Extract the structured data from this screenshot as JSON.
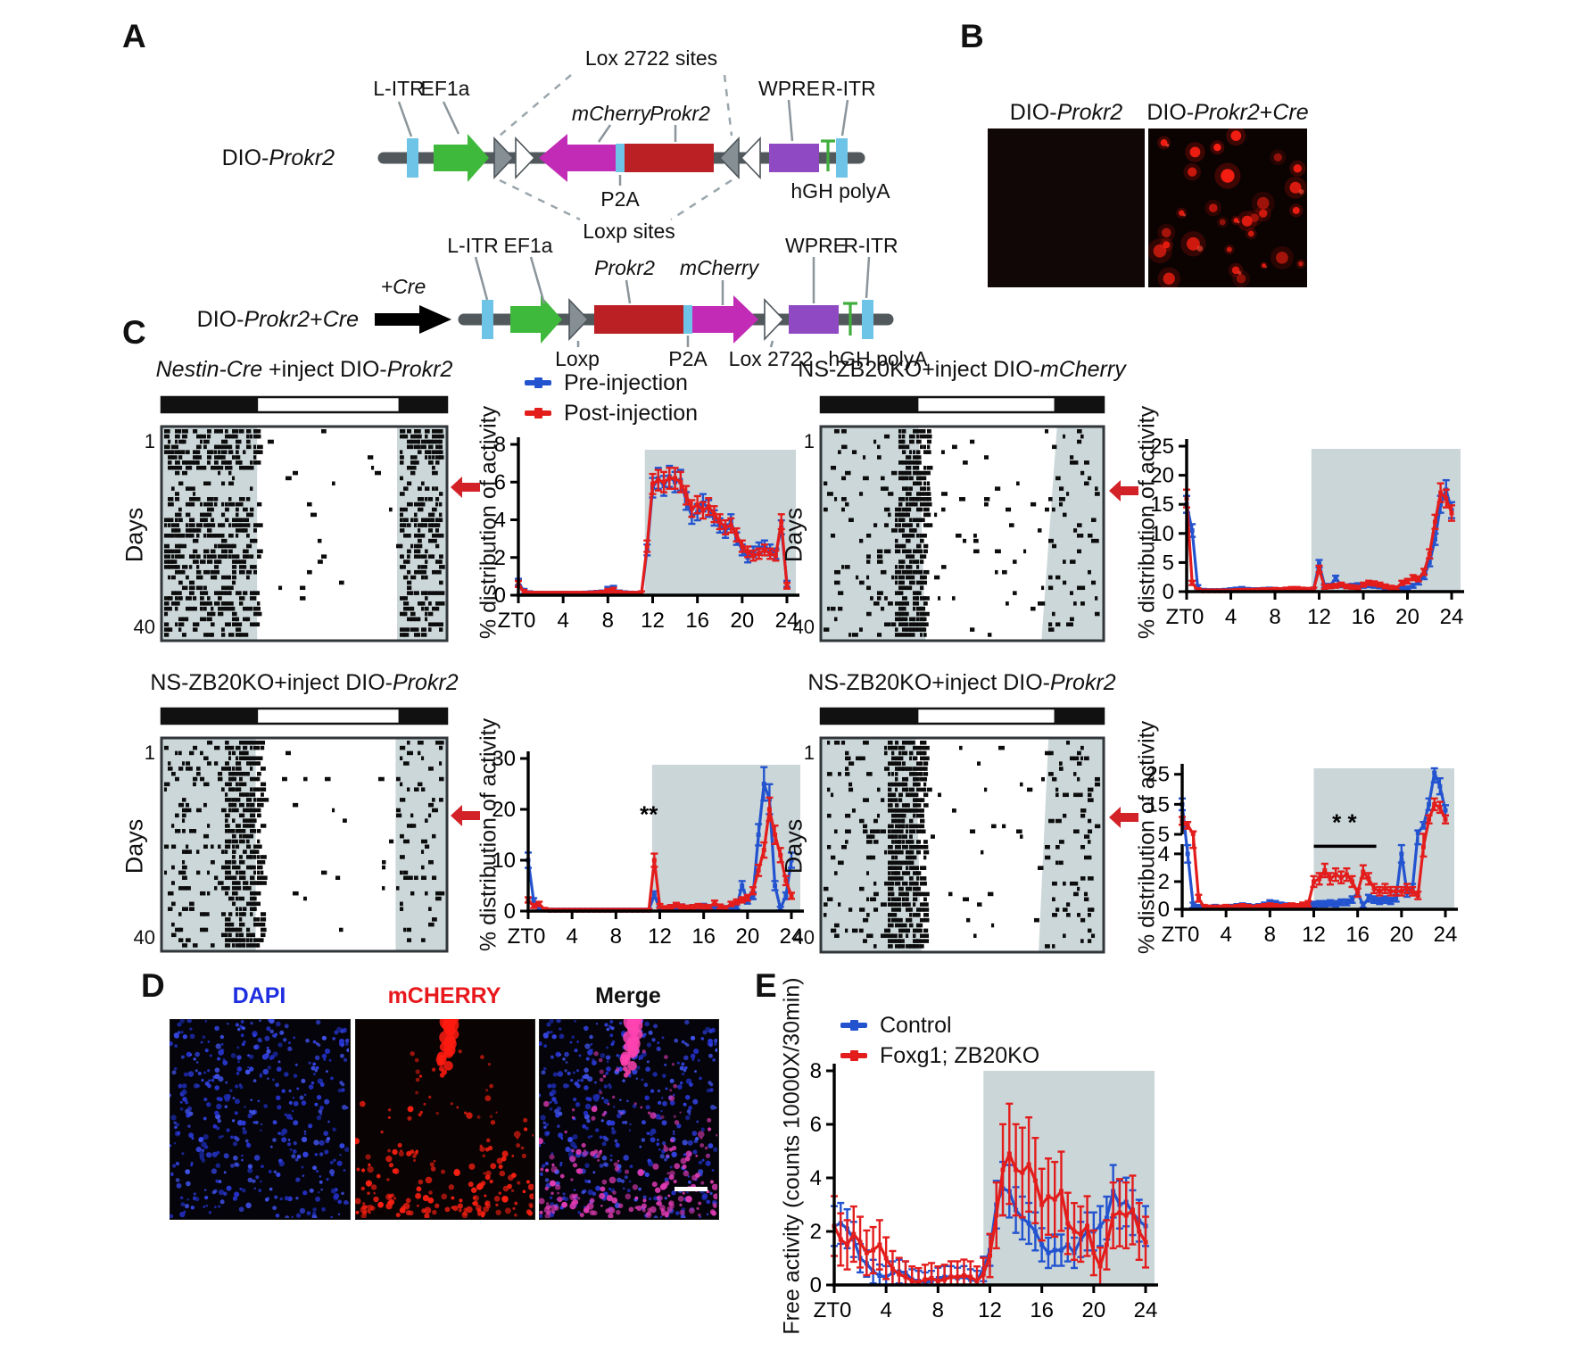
{
  "colors": {
    "blue": "#2353cf",
    "red": "#e31d1c",
    "shade": "#cbd6d9",
    "actogram_gray": "#ccd7d9",
    "arrow_red": "#d32128",
    "dapi_blue": "#2633cf",
    "mcherry_red": "#ff2012",
    "merge_pink": "#e03bb4",
    "construct": {
      "backbone": "#51595d",
      "itr": "#6ec4e6",
      "ef1a": "#3eb93b",
      "mcherry": "#c12bb5",
      "prokr2": "#bb2025",
      "wpre": "#8e49c3",
      "polya_green": "#3fae3c",
      "lox_gray": "#858f94",
      "lox_white": "#ffffff",
      "cre_black": "#000000"
    }
  },
  "panelA": {
    "letter": "A",
    "row1": {
      "name": [
        [
          "DIO-",
          false
        ],
        [
          "Prokr2",
          true
        ]
      ],
      "labels": {
        "l_itr": "L-ITR",
        "ef1a": "EF1a",
        "lox2722_sites": "Lox 2722 sites",
        "mcherry": [
          [
            "mCherry",
            true
          ]
        ],
        "prokr2": [
          [
            "Prokr2",
            true
          ]
        ],
        "wpre": "WPRE",
        "r_itr": "R-ITR",
        "p2a": "P2A",
        "hgh_polya": "hGH polyA",
        "loxp_sites": "Loxp sites"
      }
    },
    "row2": {
      "name": [
        [
          "DIO-",
          false
        ],
        [
          "Prokr2",
          true
        ],
        [
          "+",
          false
        ],
        [
          "Cre",
          true
        ]
      ],
      "plus_cre": [
        [
          "+Cre",
          true
        ]
      ],
      "labels": {
        "l_itr": "L-ITR",
        "ef1a": "EF1a",
        "prokr2": [
          [
            "Prokr2",
            true
          ]
        ],
        "mcherry": [
          [
            "mCherry",
            true
          ]
        ],
        "wpre": "WPRE",
        "r_itr": "R-ITR",
        "loxp": "Loxp",
        "p2a": "P2A",
        "lox2722": "Lox 2722",
        "hgh_polya": "hGH polyA"
      }
    }
  },
  "panelB": {
    "letter": "B",
    "captions": [
      [
        [
          "DIO-",
          false
        ],
        [
          "Prokr2",
          true
        ]
      ],
      [
        [
          "DIO-",
          false
        ],
        [
          "Prokr2",
          true
        ],
        [
          "+",
          false
        ],
        [
          "Cre",
          true
        ]
      ]
    ]
  },
  "panelC": {
    "letter": "C",
    "ylabel": "% distribution of activity",
    "days_label": "Days",
    "day_first": "1",
    "day_last": "40",
    "legend": {
      "pre": "Pre-injection",
      "post": "Post-injection"
    },
    "groups": [
      {
        "title": [
          [
            "Nestin-Cre",
            true
          ],
          [
            " +inject DIO-",
            false
          ],
          [
            "Prokr2",
            true
          ]
        ]
      },
      {
        "title": [
          [
            "NS-ZB20KO+inject DIO-",
            false
          ],
          [
            "mCherry",
            true
          ]
        ]
      },
      {
        "title": [
          [
            "NS-ZB20KO+inject DIO-",
            false
          ],
          [
            "Prokr2",
            true
          ]
        ]
      },
      {
        "title": [
          [
            "NS-ZB20KO+inject DIO-",
            false
          ],
          [
            "Prokr2",
            true
          ]
        ]
      }
    ]
  },
  "panelD": {
    "letter": "D",
    "labels": [
      "DAPI",
      "mCHERRY",
      "Merge"
    ]
  },
  "panelE": {
    "letter": "E",
    "ylabel": "Free activity (counts 10000X/30min)",
    "legend": {
      "control": "Control",
      "ko": "Foxg1; ZB20KO"
    }
  },
  "chart_data": [
    {
      "id": "nestin_cre_dio_prokr2",
      "type": "line",
      "title": "Nestin-Cre +inject DIO-Prokr2",
      "ylabel": "% distribution of activity",
      "x_prefix": "ZT",
      "x_start": 0,
      "x_step": 0.5,
      "x_ticks": [
        0,
        4,
        8,
        12,
        16,
        20,
        24
      ],
      "ylim": [
        0,
        8
      ],
      "y_ticks": [
        0,
        2,
        4,
        6,
        8
      ],
      "shade_x": [
        11.3,
        24
      ],
      "series": [
        {
          "name": "Pre-injection",
          "color": "blue",
          "err_base": 0.12,
          "err_scale": 0.07,
          "values": [
            0.7,
            0.2,
            0.08,
            0.05,
            0.05,
            0.05,
            0.05,
            0.05,
            0.05,
            0.05,
            0.05,
            0.05,
            0.06,
            0.08,
            0.1,
            0.12,
            0.3,
            0.35,
            0.12,
            0.08,
            0.06,
            0.05,
            0.08,
            2.4,
            5.7,
            6.2,
            5.8,
            6.3,
            6.0,
            6.1,
            5.0,
            4.2,
            4.4,
            4.9,
            4.6,
            4.1,
            3.7,
            3.4,
            3.9,
            3.0,
            2.4,
            2.0,
            2.3,
            2.5,
            2.6,
            2.4,
            2.2,
            3.6,
            0.6
          ]
        },
        {
          "name": "Post-injection",
          "color": "red",
          "err_base": 0.12,
          "err_scale": 0.07,
          "values": [
            0.6,
            0.15,
            0.06,
            0.05,
            0.05,
            0.05,
            0.05,
            0.05,
            0.05,
            0.05,
            0.05,
            0.05,
            0.05,
            0.06,
            0.08,
            0.1,
            0.2,
            0.25,
            0.1,
            0.06,
            0.05,
            0.05,
            0.08,
            2.6,
            5.9,
            6.1,
            6.0,
            6.2,
            6.2,
            6.0,
            5.3,
            4.6,
            4.8,
            4.5,
            4.7,
            4.3,
            3.9,
            3.6,
            3.7,
            3.2,
            2.6,
            2.3,
            2.1,
            2.2,
            2.4,
            2.2,
            2.1,
            3.9,
            0.5
          ]
        }
      ]
    },
    {
      "id": "ns_zb20ko_dio_mcherry",
      "type": "line",
      "title": "NS-ZB20KO+inject DIO-mCherry",
      "ylabel": "% distribution of activity",
      "x_prefix": "ZT",
      "x_start": 0,
      "x_step": 0.5,
      "x_ticks": [
        0,
        4,
        8,
        12,
        16,
        20,
        24
      ],
      "ylim": [
        0,
        25
      ],
      "y_ticks": [
        0,
        5,
        10,
        15,
        20,
        25
      ],
      "shade_x": [
        11.3,
        24
      ],
      "series": [
        {
          "name": "Pre-injection",
          "color": "blue",
          "err_base": 0.25,
          "err_scale": 0.08,
          "values": [
            15,
            10.5,
            0.8,
            0.2,
            0.15,
            0.15,
            0.15,
            0.2,
            0.3,
            0.4,
            0.5,
            0.35,
            0.3,
            0.3,
            0.35,
            0.4,
            0.35,
            0.3,
            0.35,
            0.4,
            0.4,
            0.35,
            0.3,
            0.4,
            4.8,
            1.0,
            1.0,
            2.3,
            1.1,
            0.9,
            1.0,
            1.1,
            1.0,
            1.1,
            1.0,
            0.9,
            0.6,
            0.5,
            0.4,
            0.5,
            0.6,
            1.0,
            1.6,
            2.6,
            5.0,
            9.0,
            15.0,
            17.5,
            14.0
          ]
        },
        {
          "name": "Post-injection",
          "color": "red",
          "err_base": 0.25,
          "err_scale": 0.08,
          "values": [
            16,
            1.5,
            0.3,
            0.1,
            0.1,
            0.1,
            0.1,
            0.1,
            0.1,
            0.15,
            0.2,
            0.2,
            0.2,
            0.25,
            0.3,
            0.3,
            0.35,
            0.3,
            0.4,
            0.5,
            0.5,
            0.4,
            0.35,
            0.4,
            3.9,
            0.8,
            0.9,
            1.0,
            1.2,
            0.9,
            0.8,
            0.7,
            1.2,
            1.5,
            1.4,
            1.2,
            0.9,
            0.7,
            0.6,
            1.5,
            1.8,
            2.4,
            2.2,
            3.4,
            6.5,
            12,
            17,
            16,
            13.5
          ]
        }
      ]
    },
    {
      "id": "ns_zb20ko_dio_prokr2_a",
      "type": "line",
      "title": "NS-ZB20KO+inject DIO-Prokr2",
      "ylabel": "% distribution of activity",
      "x_prefix": "ZT",
      "x_start": 0,
      "x_step": 0.5,
      "x_ticks": [
        0,
        4,
        8,
        12,
        16,
        20,
        24
      ],
      "ylim": [
        0,
        30
      ],
      "y_ticks": [
        0,
        10,
        20,
        30
      ],
      "shade_x": [
        11.3,
        24
      ],
      "annotations": [
        {
          "type": "stars",
          "text": "**",
          "x": 11.0,
          "y": 17.5
        }
      ],
      "series": [
        {
          "name": "Pre-injection",
          "color": "blue",
          "err_base": 0.3,
          "err_scale": 0.12,
          "values": [
            10,
            2,
            0.5,
            0.2,
            0.15,
            0.15,
            0.15,
            0.15,
            0.15,
            0.15,
            0.15,
            0.15,
            0.15,
            0.15,
            0.15,
            0.15,
            0.15,
            0.15,
            0.15,
            0.15,
            0.15,
            0.15,
            0.15,
            3.2,
            0.4,
            0.5,
            0.8,
            0.6,
            0.9,
            0.5,
            0.8,
            0.6,
            1.0,
            0.7,
            0.6,
            0.8,
            0.6,
            0.5,
            0.8,
            5.0,
            2.0,
            3.0,
            15,
            25,
            22,
            5,
            0.5,
            3,
            10
          ]
        },
        {
          "name": "Post-injection",
          "color": "red",
          "err_base": 0.3,
          "err_scale": 0.1,
          "values": [
            2.2,
            1.0,
            1.4,
            0.3,
            0.12,
            0.12,
            0.12,
            0.12,
            0.12,
            0.12,
            0.12,
            0.12,
            0.12,
            0.12,
            0.12,
            0.12,
            0.12,
            0.12,
            0.12,
            0.12,
            0.12,
            0.12,
            0.12,
            10.0,
            1.0,
            0.6,
            0.8,
            1.2,
            0.9,
            0.7,
            0.8,
            1.0,
            0.9,
            0.8,
            1.6,
            0.9,
            0.6,
            1.4,
            1.8,
            2.2,
            2.6,
            4.0,
            8.0,
            12.0,
            20.0,
            15.0,
            11.0,
            6.0,
            3.0
          ]
        }
      ]
    },
    {
      "id": "ns_zb20ko_dio_prokr2_b",
      "type": "line",
      "title": "NS-ZB20KO+inject DIO-Prokr2",
      "ylabel": "% distribution of activity",
      "x_prefix": "ZT",
      "x_start": 0,
      "x_step": 0.5,
      "x_ticks": [
        0,
        4,
        8,
        12,
        16,
        20,
        24
      ],
      "y_segments": {
        "lower": {
          "range": [
            0,
            4.7
          ],
          "ticks": [
            0,
            2,
            4
          ]
        },
        "upper": {
          "range": [
            5,
            27
          ],
          "ticks": [
            5,
            15,
            25
          ]
        }
      },
      "shade_x": [
        12,
        24
      ],
      "annotations": [
        {
          "type": "stars",
          "text": "* *",
          "x": 14.8,
          "y": 6.3
        },
        {
          "type": "sigline",
          "x1": 12,
          "x2": 17.7,
          "y": 4.55
        }
      ],
      "series": [
        {
          "name": "Pre-injection",
          "color": "blue",
          "err_base": 0.15,
          "err_scale": 0.12,
          "values": [
            15,
            4,
            0.3,
            0.15,
            0.1,
            0.1,
            0.15,
            0.1,
            0.1,
            0.15,
            0.2,
            0.25,
            0.2,
            0.15,
            0.2,
            0.3,
            0.45,
            0.4,
            0.3,
            0.25,
            0.2,
            0.2,
            0.25,
            0.3,
            0.35,
            0.4,
            0.4,
            0.45,
            0.4,
            0.5,
            0.5,
            0.7,
            1.2,
            0.3,
            0.8,
            0.7,
            0.6,
            0.7,
            0.6,
            0.8,
            4.0,
            1.2,
            1.5,
            5.5,
            8.0,
            15.0,
            25.5,
            21.0,
            13.0
          ]
        },
        {
          "name": "Post-injection",
          "color": "red",
          "err_base": 0.15,
          "err_scale": 0.12,
          "values": [
            9.5,
            8.0,
            5.2,
            0.8,
            0.15,
            0.1,
            0.1,
            0.1,
            0.15,
            0.1,
            0.15,
            0.2,
            0.15,
            0.1,
            0.15,
            0.2,
            0.25,
            0.2,
            0.15,
            0.2,
            0.25,
            0.2,
            0.3,
            0.4,
            2.0,
            2.2,
            2.8,
            2.2,
            2.5,
            2.3,
            2.5,
            2.0,
            1.2,
            2.7,
            2.2,
            1.5,
            1.3,
            1.5,
            1.3,
            1.3,
            1.3,
            1.5,
            1.3,
            1.0,
            4.5,
            10.0,
            15.0,
            14.0,
            10.0
          ]
        }
      ]
    },
    {
      "id": "free_activity",
      "type": "line",
      "title": "Free activity",
      "ylabel": "Free activity (counts 10000X/30min)",
      "x_prefix": "ZT",
      "x_start": 0,
      "x_step": 0.5,
      "x_ticks": [
        0,
        4,
        8,
        12,
        16,
        20,
        24
      ],
      "ylim": [
        0,
        8
      ],
      "y_ticks": [
        0,
        2,
        4,
        6,
        8
      ],
      "shade_x": [
        11.5,
        24
      ],
      "series": [
        {
          "name": "Control",
          "color": "blue",
          "err_base": 0.35,
          "err_scale": 0.18,
          "values": [
            2.2,
            2.3,
            2.1,
            1.7,
            1.0,
            0.8,
            0.5,
            0.35,
            0.3,
            0.45,
            0.5,
            0.45,
            0.2,
            0.15,
            0.1,
            0.15,
            0.25,
            0.3,
            0.3,
            0.25,
            0.3,
            0.2,
            0.15,
            0.6,
            1.3,
            3.0,
            3.6,
            3.5,
            2.8,
            2.5,
            2.3,
            2.0,
            1.5,
            1.2,
            1.3,
            1.3,
            1.5,
            1.2,
            1.7,
            2.0,
            2.0,
            2.2,
            2.5,
            3.5,
            3.0,
            3.1,
            2.7,
            2.4,
            2.2
          ]
        },
        {
          "name": "Foxg1; ZB20KO",
          "color": "red",
          "err_base": 0.5,
          "err_scale": 0.28,
          "values": [
            2.2,
            1.7,
            1.5,
            1.9,
            1.6,
            1.2,
            1.3,
            1.5,
            1.0,
            0.6,
            0.4,
            0.3,
            0.15,
            0.1,
            0.2,
            0.25,
            0.15,
            0.2,
            0.3,
            0.3,
            0.35,
            0.3,
            0.15,
            0.4,
            1.1,
            2.6,
            4.3,
            4.9,
            4.3,
            4.2,
            4.5,
            3.9,
            3.0,
            3.3,
            3.2,
            3.5,
            2.3,
            2.0,
            1.9,
            2.2,
            1.2,
            0.7,
            1.5,
            2.6,
            2.7,
            2.6,
            2.8,
            2.0,
            1.6
          ]
        }
      ]
    }
  ]
}
